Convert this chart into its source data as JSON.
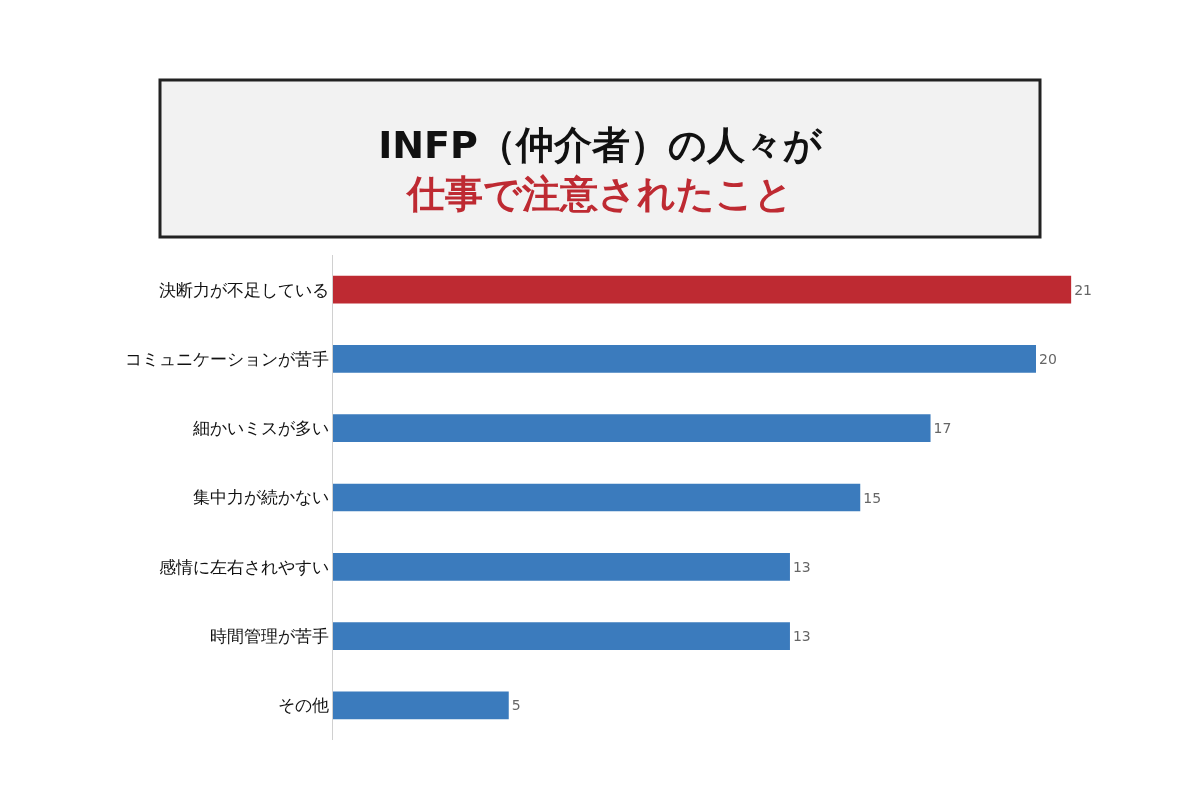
{
  "chart_data": {
    "type": "bar",
    "orientation": "horizontal",
    "title": "INFP（仲介者）の人々が",
    "subtitle": "仕事で注意されたこと",
    "categories": [
      "決断力が不足している",
      "コミュニケーションが苦手",
      "細かいミスが多い",
      "集中力が続かない",
      "感情に左右されやすい",
      "時間管理が苦手",
      "その他"
    ],
    "values": [
      21,
      20,
      17,
      15,
      13,
      13,
      5
    ],
    "colors": [
      "#be2a32",
      "#3b7bbd",
      "#3b7bbd",
      "#3b7bbd",
      "#3b7bbd",
      "#3b7bbd",
      "#3b7bbd"
    ],
    "data_labels": true,
    "tick_labels": "y"
  }
}
